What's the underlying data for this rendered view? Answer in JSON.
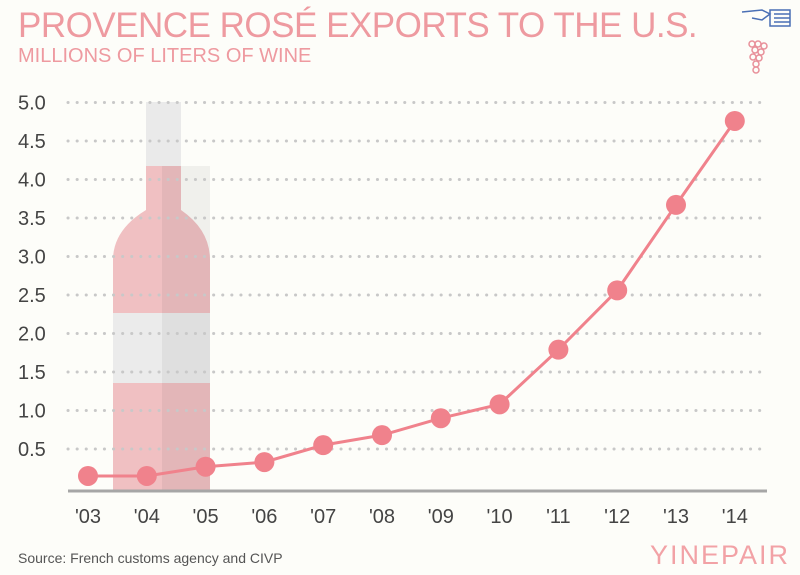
{
  "chart_data": {
    "type": "line",
    "title": "PROVENCE ROSÉ EXPORTS TO THE U.S.",
    "subtitle": "MILLIONS OF LITERS OF WINE",
    "categories": [
      "'03",
      "'04",
      "'05",
      "'06",
      "'07",
      "'08",
      "'09",
      "'10",
      "'11",
      "'12",
      "'13",
      "'14"
    ],
    "values": [
      0.15,
      0.15,
      0.27,
      0.33,
      0.55,
      0.68,
      0.9,
      1.08,
      1.79,
      2.56,
      3.67,
      4.76
    ],
    "yticks": [
      "0.5",
      "1.0",
      "1.5",
      "2.0",
      "2.5",
      "3.0",
      "3.5",
      "4.0",
      "4.5",
      "5.0"
    ],
    "ylim": [
      0,
      5.0
    ],
    "grid": true,
    "colors": {
      "line": "#f0828c",
      "title": "#ee9aa0",
      "bottle": "#f0c0c2"
    }
  },
  "source": "Source: French customs agency and CIVP",
  "brand": "YINEPAIR"
}
